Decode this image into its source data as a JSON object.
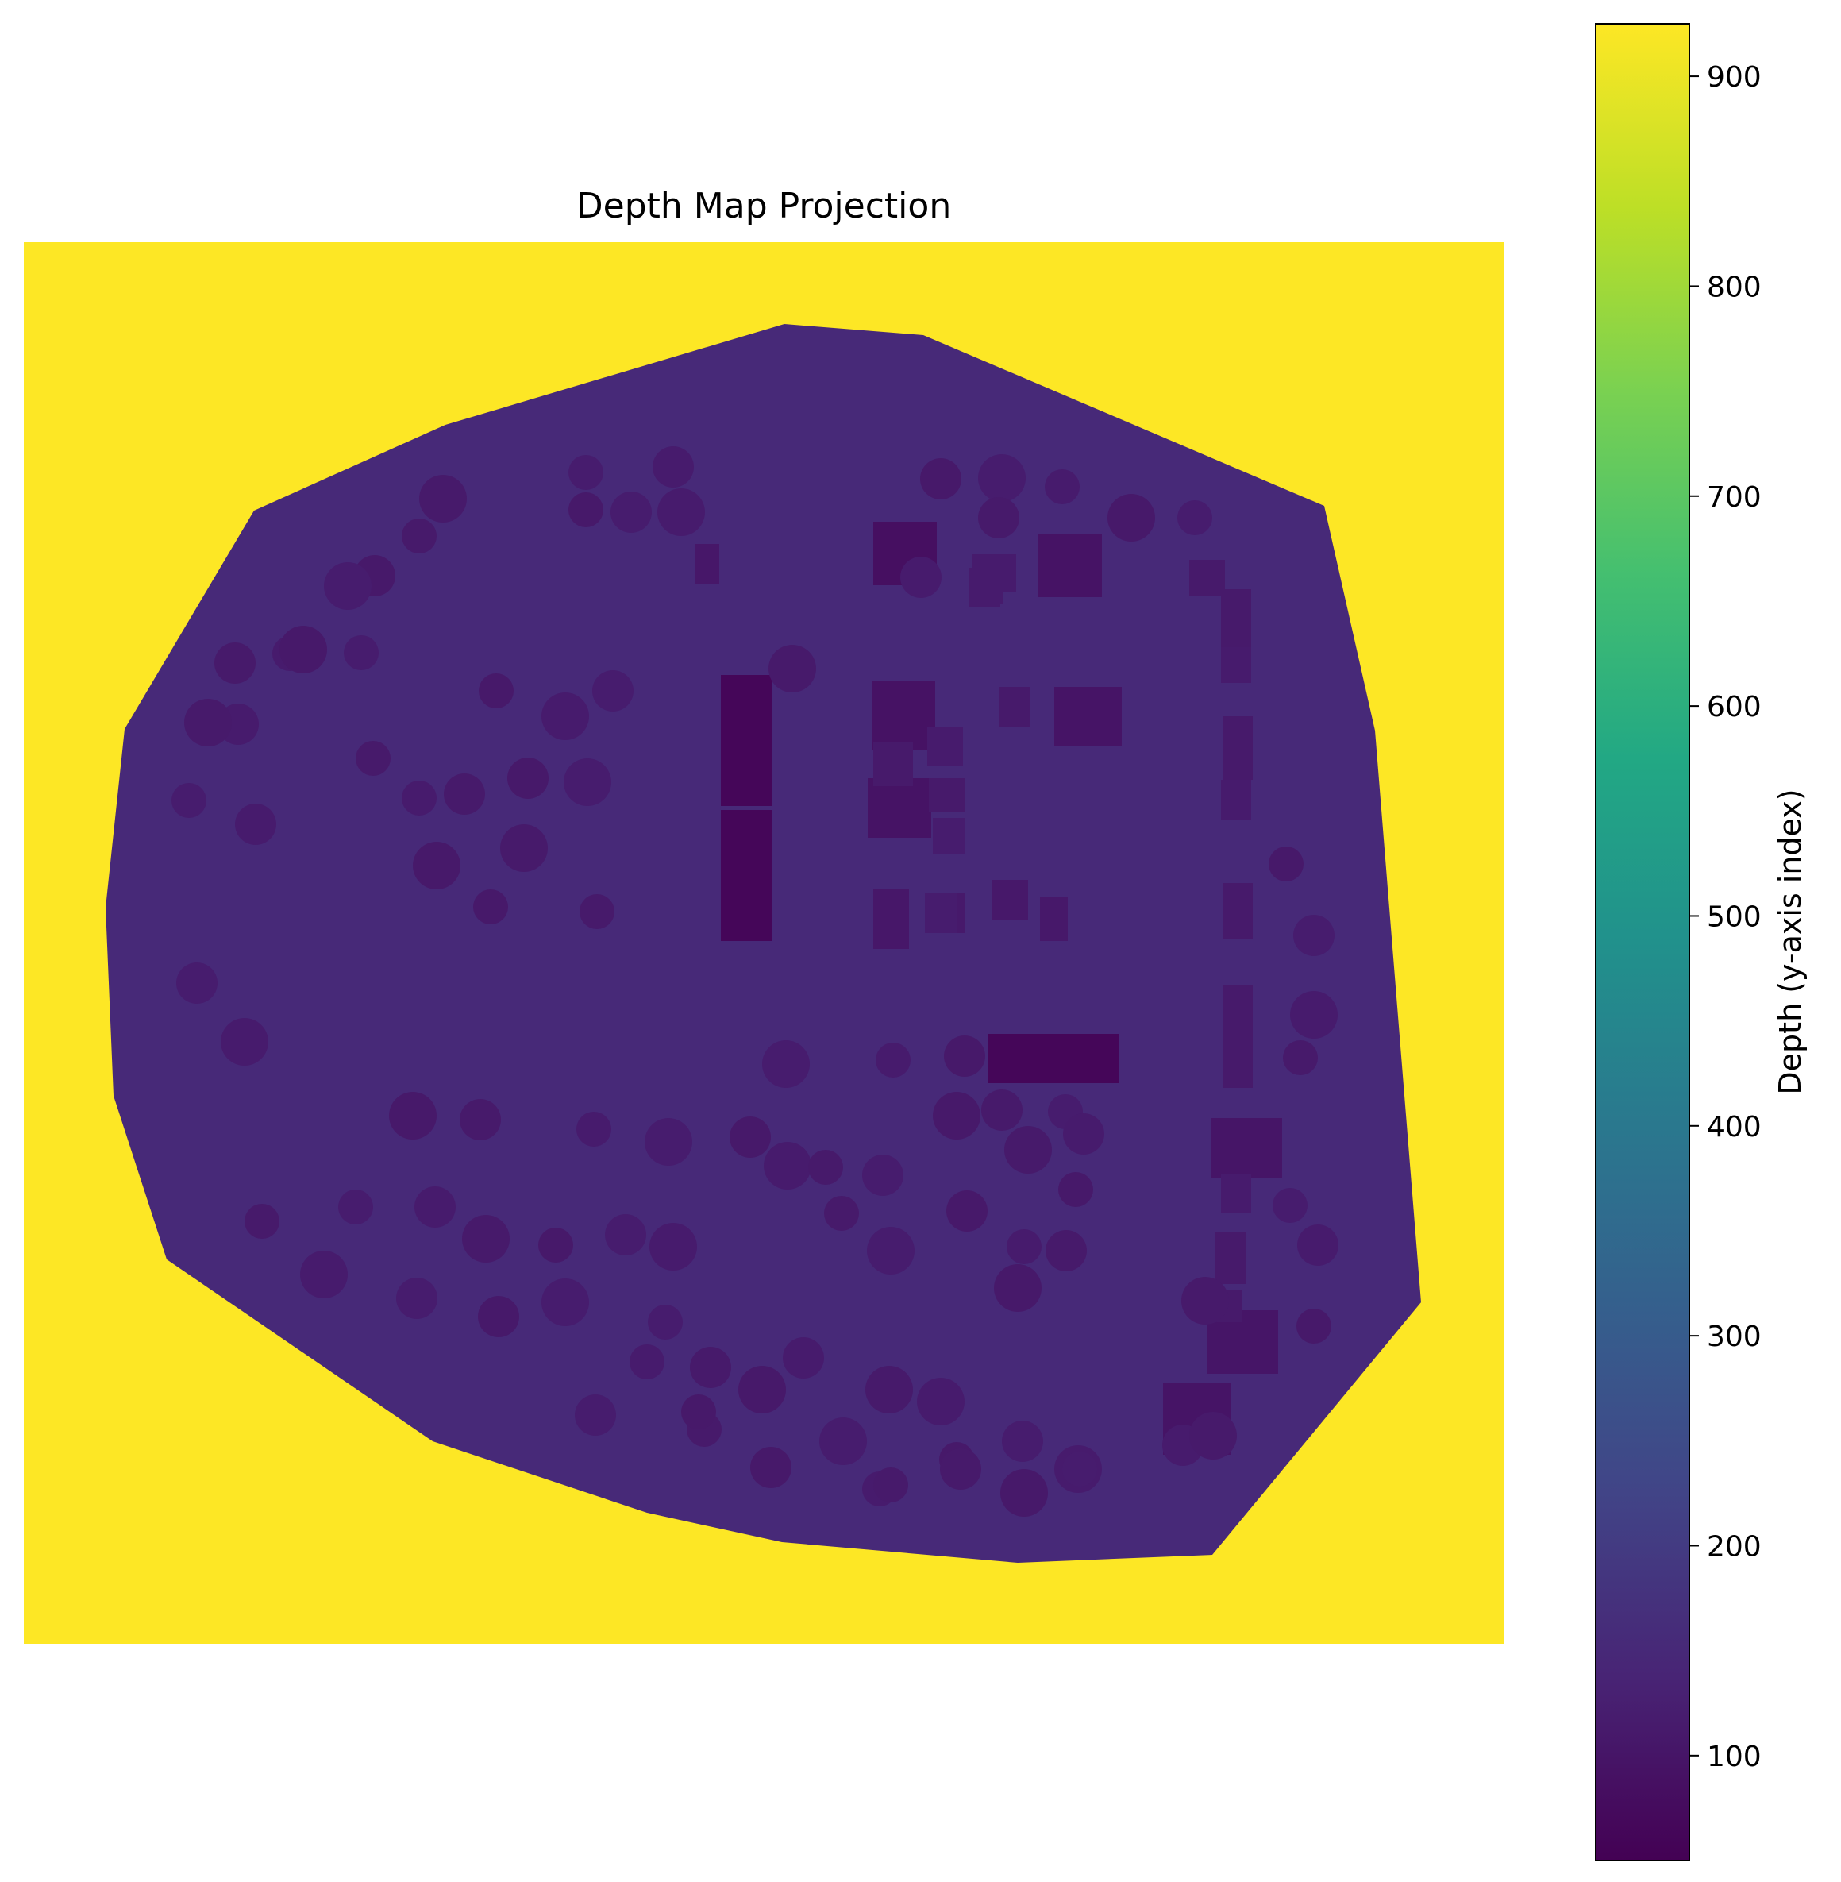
{
  "chart_data": {
    "type": "heatmap",
    "title": "Depth Map Projection",
    "axes_visible": false,
    "colormap": "viridis",
    "background_value": 925,
    "region_value": 150,
    "clim": [
      50,
      925
    ],
    "colorbar": {
      "label": "Depth (y-axis index)",
      "ticks": [
        100,
        200,
        300,
        400,
        500,
        600,
        700,
        800,
        900
      ],
      "tick_labels": [
        "100",
        "200",
        "300",
        "400",
        "500",
        "600",
        "700",
        "800",
        "900"
      ]
    },
    "dark_features": {
      "value_range": [
        60,
        120
      ],
      "kinds": [
        "rectangular blocks",
        "round blobs"
      ]
    }
  }
}
